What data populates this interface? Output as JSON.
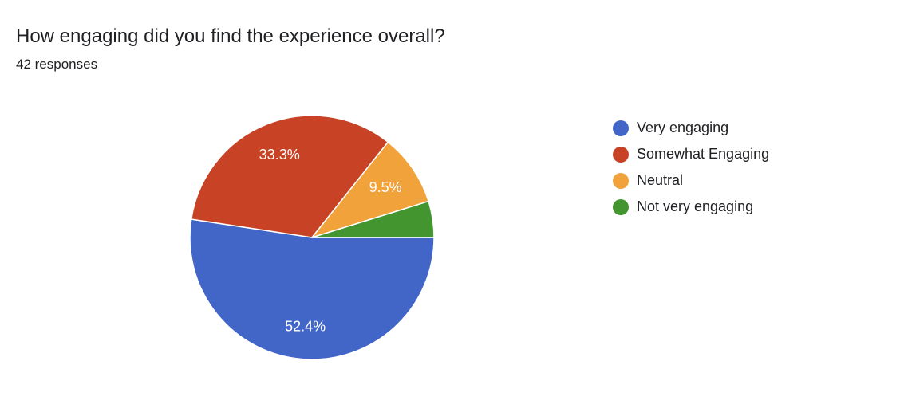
{
  "header": {
    "title": "How engaging did you find the experience overall?",
    "responses": "42 responses"
  },
  "chart_data": {
    "type": "pie",
    "slices": [
      {
        "label": "Very engaging",
        "value": 52.4,
        "display": "52.4%",
        "color": "#4265c8"
      },
      {
        "label": "Somewhat Engaging",
        "value": 33.3,
        "display": "33.3%",
        "color": "#c84326"
      },
      {
        "label": "Neutral",
        "value": 9.5,
        "display": "9.5%",
        "color": "#f1a23a"
      },
      {
        "label": "Not very engaging",
        "value": 4.8,
        "display": "",
        "color": "#43952f"
      }
    ],
    "legend_position": "right"
  }
}
